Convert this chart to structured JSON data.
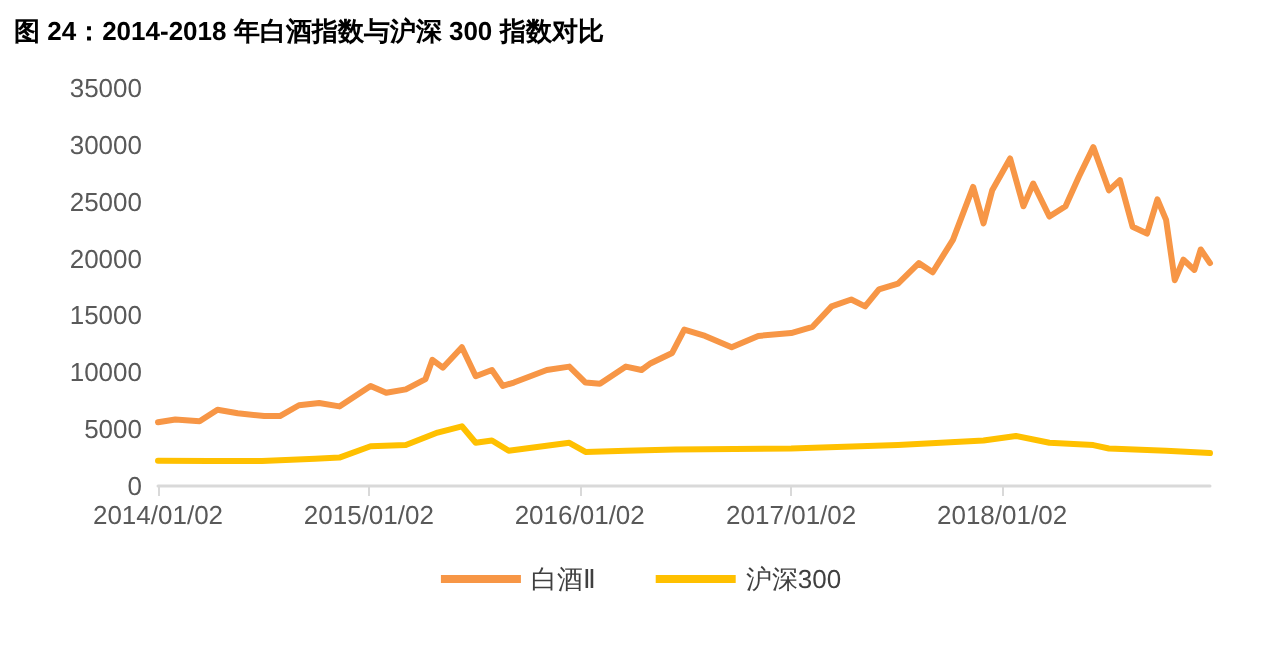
{
  "chart_data": {
    "type": "line",
    "title": "图 24：2014-2018 年白酒指数与沪深 300 指数对比",
    "xlim": [
      "2014-01-02",
      "2018-12-28"
    ],
    "xticks": [
      {
        "value": "2014-01-02",
        "label": "2014/01/02"
      },
      {
        "value": "2015-01-02",
        "label": "2015/01/02"
      },
      {
        "value": "2016-01-02",
        "label": "2016/01/02"
      },
      {
        "value": "2017-01-02",
        "label": "2017/01/02"
      },
      {
        "value": "2018-01-02",
        "label": "2018/01/02"
      }
    ],
    "ylim": [
      0,
      35000
    ],
    "yticks": [
      0,
      5000,
      10000,
      15000,
      20000,
      25000,
      30000,
      35000
    ],
    "grid": false,
    "legend": "bottom",
    "marker": "none",
    "line_style": "solid",
    "series": [
      {
        "name": "白酒Ⅱ",
        "color": "#f79646",
        "x": [
          "2014-01-02",
          "2014-02-01",
          "2014-03-15",
          "2014-04-15",
          "2014-05-20",
          "2014-07-05",
          "2014-08-01",
          "2014-09-03",
          "2014-10-08",
          "2014-11-12",
          "2015-01-05",
          "2015-02-01",
          "2015-03-07",
          "2015-04-10",
          "2015-04-22",
          "2015-05-10",
          "2015-06-12",
          "2015-07-06",
          "2015-08-03",
          "2015-08-22",
          "2015-09-10",
          "2015-11-06",
          "2015-12-15",
          "2016-01-12",
          "2016-02-06",
          "2016-03-22",
          "2016-04-18",
          "2016-05-04",
          "2016-06-10",
          "2016-07-01",
          "2016-08-06",
          "2016-09-21",
          "2016-11-06",
          "2017-01-02",
          "2017-02-08",
          "2017-03-13",
          "2017-04-16",
          "2017-05-10",
          "2017-06-03",
          "2017-07-06",
          "2017-08-11",
          "2017-09-04",
          "2017-10-09",
          "2017-11-13",
          "2017-12-01",
          "2017-12-16",
          "2018-01-16",
          "2018-02-08",
          "2018-02-25",
          "2018-03-25",
          "2018-04-22",
          "2018-05-15",
          "2018-06-09",
          "2018-07-06",
          "2018-07-25",
          "2018-08-16",
          "2018-09-10",
          "2018-09-28",
          "2018-10-13",
          "2018-10-28",
          "2018-11-12",
          "2018-12-01",
          "2018-12-12",
          "2018-12-28"
        ],
        "values": [
          5600,
          5850,
          5700,
          6700,
          6400,
          6150,
          6150,
          7100,
          7300,
          7000,
          8800,
          8200,
          8500,
          9400,
          11100,
          10400,
          12200,
          9650,
          10200,
          8800,
          9100,
          10200,
          10500,
          9100,
          9000,
          10500,
          10200,
          10800,
          11700,
          13750,
          13200,
          12200,
          13200,
          13450,
          14000,
          15800,
          16400,
          15800,
          17300,
          17800,
          19600,
          18800,
          21650,
          26300,
          23100,
          26000,
          28800,
          24600,
          26600,
          23700,
          24600,
          27200,
          29800,
          26000,
          26900,
          22800,
          22200,
          25200,
          23400,
          18100,
          19900,
          19000,
          20800,
          19600
        ]
      },
      {
        "name": "沪深300",
        "color": "#ffc000",
        "x": [
          "2014-01-02",
          "2014-04-01",
          "2014-07-01",
          "2014-10-01",
          "2014-11-12",
          "2015-01-05",
          "2015-03-07",
          "2015-05-01",
          "2015-06-12",
          "2015-07-06",
          "2015-08-03",
          "2015-09-01",
          "2015-12-15",
          "2016-01-12",
          "2016-03-22",
          "2016-06-15",
          "2017-01-02",
          "2017-07-06",
          "2017-12-01",
          "2018-01-26",
          "2018-03-25",
          "2018-06-09",
          "2018-07-06",
          "2018-10-13",
          "2018-12-28"
        ],
        "values": [
          2220,
          2200,
          2200,
          2400,
          2500,
          3500,
          3600,
          4700,
          5250,
          3800,
          4000,
          3100,
          3800,
          3000,
          3100,
          3200,
          3300,
          3600,
          4000,
          4400,
          3800,
          3600,
          3300,
          3100,
          2900
        ]
      }
    ]
  }
}
